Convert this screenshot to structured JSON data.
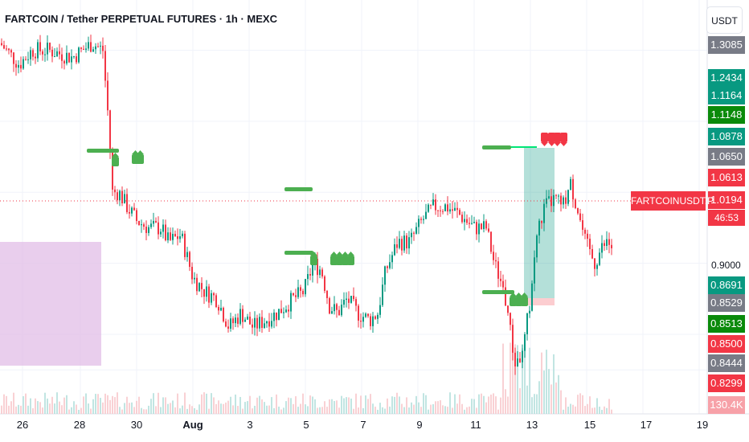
{
  "header": {
    "title": "FARTCOIN / Tether PERPETUAL FUTURES · 1h · MEXC"
  },
  "currency_button": "USDT",
  "symbol_tag": "FARTCOINUSDT.P",
  "countdown": "46:53",
  "price_tags": [
    {
      "label": "1.3085",
      "color": "#787b86"
    },
    {
      "label": "1.2434",
      "color": "#089981"
    },
    {
      "label": "1.1164",
      "color": "#089981"
    },
    {
      "label": "1.1148",
      "color": "#0a8a0a"
    },
    {
      "label": "1.0878",
      "color": "#089981"
    },
    {
      "label": "1.0650",
      "color": "#787b86"
    },
    {
      "label": "1.0613",
      "color": "#f23645"
    },
    {
      "label": "1.0194",
      "color": "#f23645"
    },
    {
      "label": "0.8691",
      "color": "#089981"
    },
    {
      "label": "0.8529",
      "color": "#787b86"
    },
    {
      "label": "0.8513",
      "color": "#0a8a0a"
    },
    {
      "label": "0.8500",
      "color": "#f23645"
    },
    {
      "label": "0.8444",
      "color": "#787b86"
    },
    {
      "label": "0.8299",
      "color": "#f23645"
    },
    {
      "label": "130.4K",
      "color": "#f7a1a8"
    }
  ],
  "y_axis_label": "0.9000",
  "chart_data": {
    "type": "candlestick",
    "x_tick_labels": [
      "26",
      "28",
      "30",
      "Aug",
      "3",
      "5",
      "7",
      "9",
      "11",
      "13",
      "15",
      "17",
      "19"
    ],
    "y_axis": {
      "visible_tick": "0.9000",
      "current_price": 1.0194
    },
    "close_path": [
      [
        0,
        1.31
      ],
      [
        24,
        1.28
      ],
      [
        40,
        1.3
      ],
      [
        60,
        1.3
      ],
      [
        90,
        1.29
      ],
      [
        115,
        1.31
      ],
      [
        128,
        1.3
      ],
      [
        135,
        1.2
      ],
      [
        140,
        1.1
      ],
      [
        148,
        1.1
      ],
      [
        158,
        1.08
      ],
      [
        170,
        1.06
      ],
      [
        185,
        1.05
      ],
      [
        200,
        1.05
      ],
      [
        210,
        1.03
      ],
      [
        225,
        1.04
      ],
      [
        240,
        0.98
      ],
      [
        255,
        0.96
      ],
      [
        270,
        0.95
      ],
      [
        285,
        0.91
      ],
      [
        300,
        0.93
      ],
      [
        315,
        0.91
      ],
      [
        330,
        0.92
      ],
      [
        345,
        0.93
      ],
      [
        365,
        0.95
      ],
      [
        378,
        0.96
      ],
      [
        390,
        1.0
      ],
      [
        400,
        0.99
      ],
      [
        410,
        0.94
      ],
      [
        420,
        0.93
      ],
      [
        432,
        0.95
      ],
      [
        445,
        0.93
      ],
      [
        460,
        0.92
      ],
      [
        470,
        0.93
      ],
      [
        480,
        0.99
      ],
      [
        495,
        1.03
      ],
      [
        510,
        1.03
      ],
      [
        525,
        1.06
      ],
      [
        540,
        1.08
      ],
      [
        555,
        1.08
      ],
      [
        570,
        1.07
      ],
      [
        590,
        1.05
      ],
      [
        605,
        1.05
      ],
      [
        615,
        1.0
      ],
      [
        625,
        0.97
      ],
      [
        632,
        0.93
      ],
      [
        640,
        0.86
      ],
      [
        650,
        0.87
      ],
      [
        660,
        0.95
      ],
      [
        668,
        1.04
      ],
      [
        678,
        1.08
      ],
      [
        690,
        1.09
      ],
      [
        700,
        1.08
      ],
      [
        710,
        1.11
      ],
      [
        718,
        1.08
      ],
      [
        728,
        1.03
      ],
      [
        740,
        1.0
      ],
      [
        748,
        1.02
      ],
      [
        756,
        1.03
      ],
      [
        762,
        1.02
      ]
    ],
    "shaded_zone": {
      "color": "#e1bee7",
      "price_range": "below 0.8900"
    },
    "position_tool": {
      "entry": 0.8529,
      "target": 1.0878,
      "stop": 0.8444
    },
    "markers": {
      "buy_color": "#4caf50",
      "sell_color": "#f23645"
    }
  }
}
